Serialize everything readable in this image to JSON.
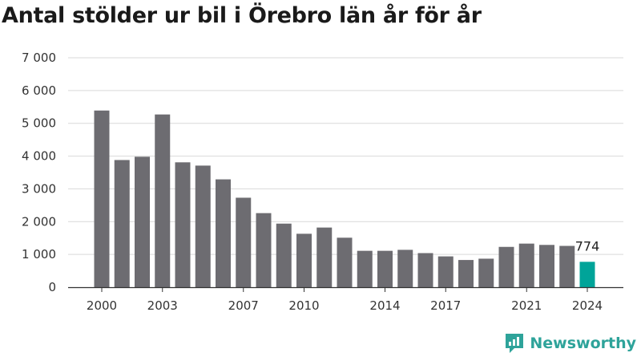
{
  "chart_data": {
    "type": "bar",
    "title": "Antal stölder ur bil i Örebro län år för år",
    "xlabel": "",
    "ylabel": "",
    "categories": [
      "2000",
      "2001",
      "2002",
      "2003",
      "2004",
      "2005",
      "2006",
      "2007",
      "2008",
      "2009",
      "2010",
      "2011",
      "2012",
      "2013",
      "2014",
      "2015",
      "2016",
      "2017",
      "2018",
      "2019",
      "2020",
      "2021",
      "2022",
      "2023",
      "2024"
    ],
    "values": [
      5390,
      3880,
      3980,
      5270,
      3810,
      3710,
      3290,
      2730,
      2260,
      1940,
      1630,
      1820,
      1510,
      1110,
      1110,
      1140,
      1040,
      940,
      830,
      870,
      1230,
      1330,
      1290,
      1260,
      774
    ],
    "ylim": [
      0,
      7000
    ],
    "yticks": [
      0,
      1000,
      2000,
      3000,
      4000,
      5000,
      6000,
      7000
    ],
    "ytick_labels": [
      "0",
      "1 000",
      "2 000",
      "3 000",
      "4 000",
      "5 000",
      "6 000",
      "7 000"
    ],
    "xtick_labels": [
      "2000",
      "2003",
      "2007",
      "2010",
      "2014",
      "2017",
      "2021",
      "2024"
    ],
    "highlight_category": "2024",
    "highlight_label": "774",
    "colors": {
      "bar": "#6d6c71",
      "highlight": "#00a499",
      "grid": "#d9d9d9",
      "axis": "#333333"
    },
    "grid": true,
    "legend": "none"
  },
  "brand": {
    "name": "Newsworthy",
    "icon": "newsworthy-logo-icon",
    "color": "#2ea39a"
  }
}
